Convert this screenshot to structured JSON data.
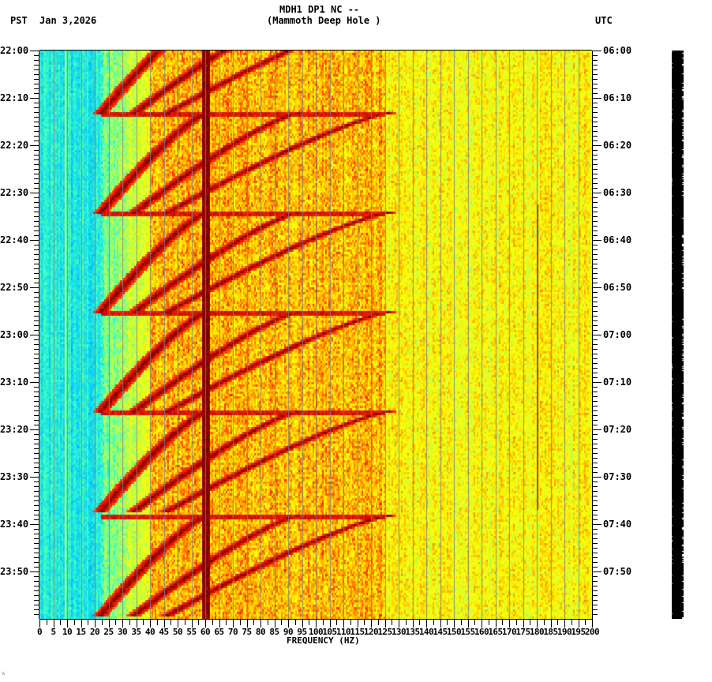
{
  "header": {
    "station_line": "MDH1 DP1 NC --",
    "location_line": "(Mammoth Deep Hole )",
    "left_timezone": "PST",
    "date": "Jan 3,2026",
    "right_timezone": "UTC"
  },
  "footer": {
    "corner_mark": "∴"
  },
  "chart_data": {
    "type": "heatmap",
    "title": "MDH1 DP1 NC -- (Mammoth Deep Hole )",
    "subtitle": "Spectrogram, Jan 3,2026",
    "xlabel": "FREQUENCY (HZ)",
    "ylabel_left": "PST",
    "ylabel_right": "UTC",
    "xlim": [
      0,
      200
    ],
    "x_ticks": [
      0,
      5,
      10,
      15,
      20,
      25,
      30,
      35,
      40,
      45,
      50,
      55,
      60,
      65,
      70,
      75,
      80,
      85,
      90,
      95,
      100,
      105,
      110,
      115,
      120,
      125,
      130,
      135,
      140,
      145,
      150,
      155,
      160,
      165,
      170,
      175,
      180,
      185,
      190,
      195,
      200
    ],
    "x_tick_labels": [
      "0",
      "5",
      "10",
      "15",
      "20",
      "25",
      "30",
      "35",
      "40",
      "45",
      "50",
      "55",
      "60",
      "65",
      "70",
      "75",
      "80",
      "85",
      "90",
      "95",
      "100",
      "105",
      "110",
      "115",
      "120",
      "125",
      "130",
      "135",
      "140",
      "145",
      "150",
      "155",
      "160",
      "165",
      "170",
      "175",
      "180",
      "185",
      "190",
      "195",
      "200"
    ],
    "y_range_minutes": [
      0,
      120
    ],
    "y_ticks_left": [
      "22:00",
      "22:10",
      "22:20",
      "22:30",
      "22:40",
      "22:50",
      "23:00",
      "23:10",
      "23:20",
      "23:30",
      "23:40",
      "23:50"
    ],
    "y_ticks_right": [
      "06:00",
      "06:10",
      "06:20",
      "06:30",
      "06:40",
      "06:50",
      "07:00",
      "07:10",
      "07:20",
      "07:30",
      "07:40",
      "07:50"
    ],
    "minor_tick_interval_minutes": 1,
    "grid": "vertical lines every 5 Hz",
    "colormap": [
      "#0050ff",
      "#00c8ff",
      "#40ffc0",
      "#c8ff40",
      "#ffff00",
      "#ffa000",
      "#ff2000",
      "#800000"
    ],
    "features": {
      "persistent_lines_hz": [
        60,
        180
      ],
      "persistent_line_60hz_color": "#800000",
      "low_energy_band_hz": [
        0,
        25
      ],
      "high_energy_band_hz": [
        40,
        125
      ],
      "sweep_repeat_start_minutes": [
        13,
        34,
        55,
        76,
        98
      ],
      "sweep_description": "Repeating descending-frequency harmonic sweeps (~21 min period), fundamental from ~60 Hz down to ~22 Hz with harmonics up to ~125 Hz"
    },
    "legend": "none (amplitude bar at right, black)"
  }
}
